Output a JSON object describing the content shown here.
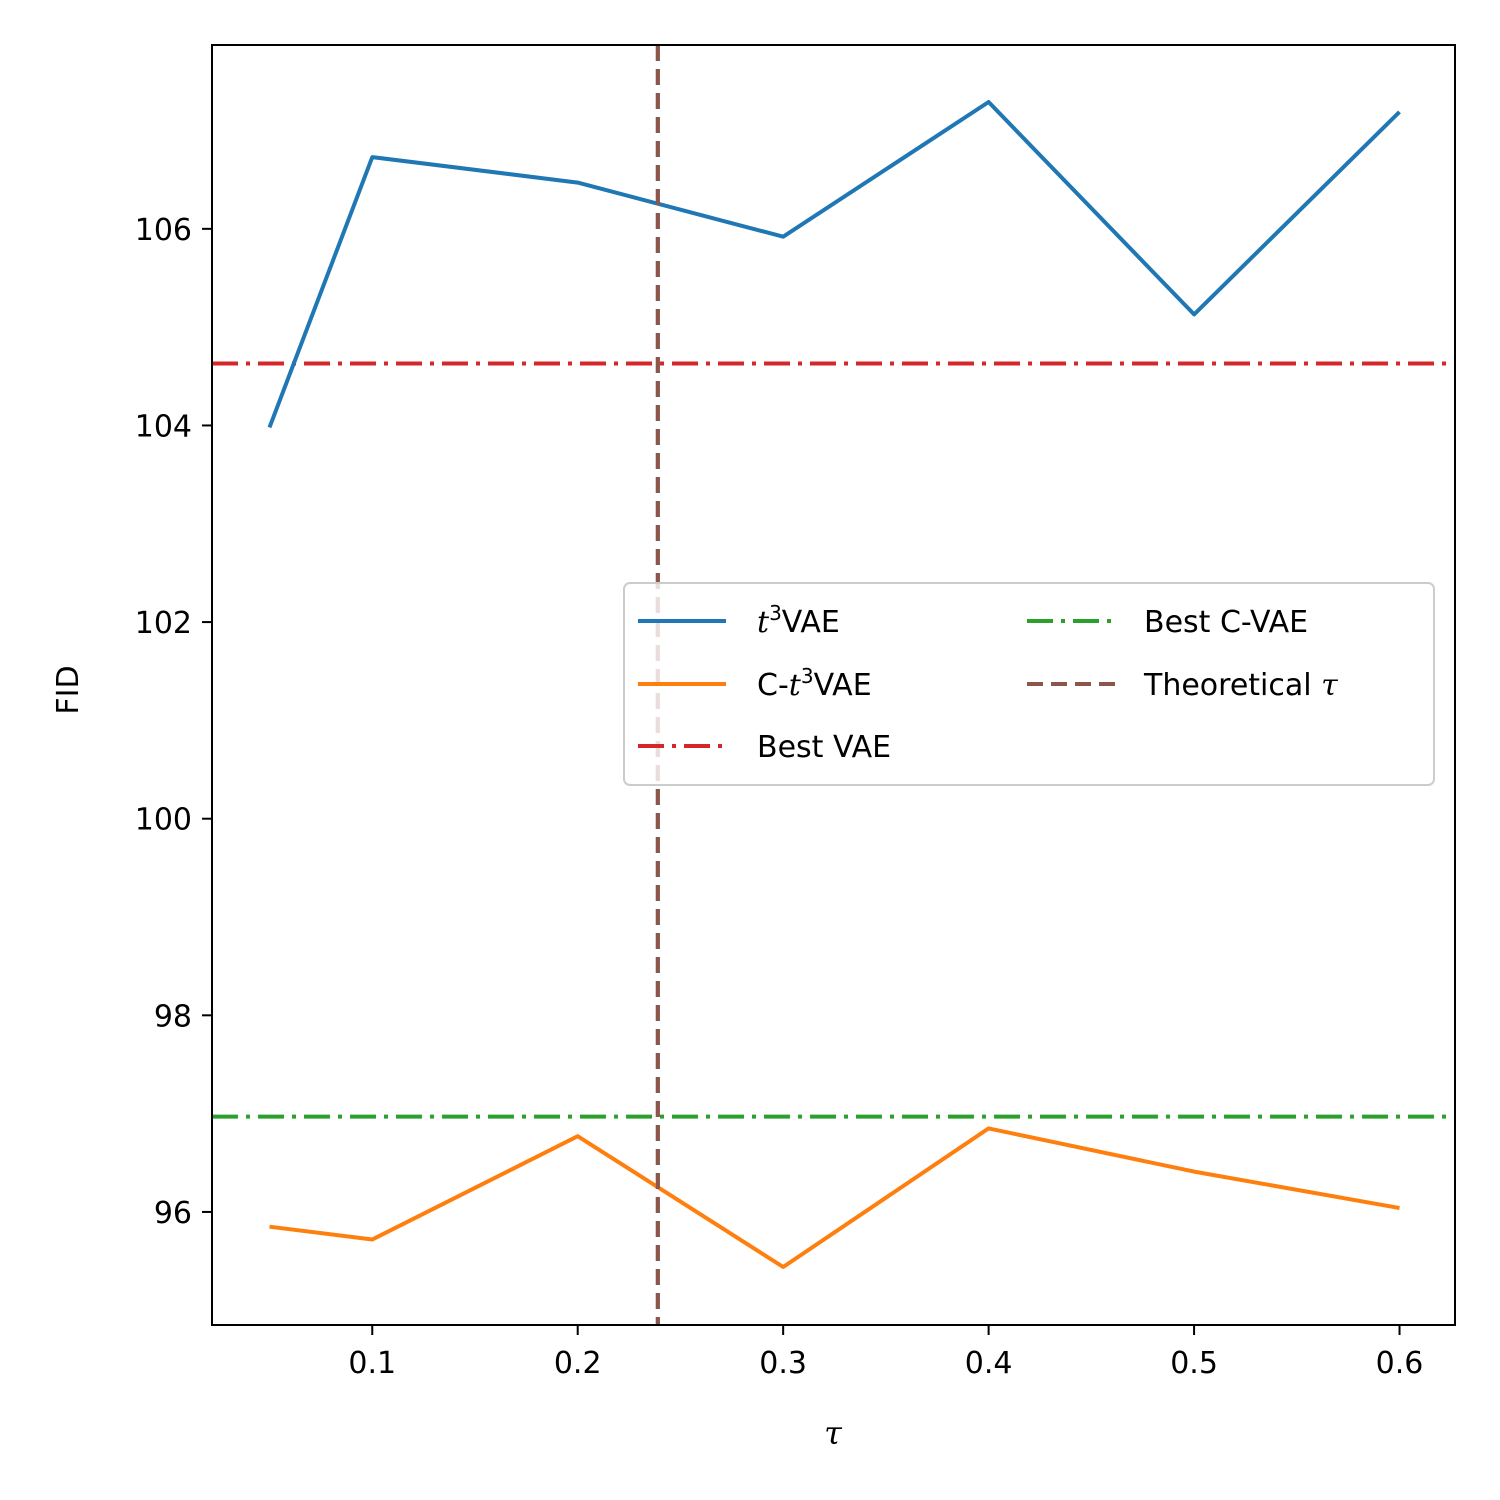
{
  "chart_data": {
    "type": "line",
    "title": "",
    "xlabel": "τ",
    "ylabel": "FID",
    "xlim": [
      0.022,
      0.627
    ],
    "ylim": [
      94.85,
      107.87
    ],
    "xticks": [
      0.1,
      0.2,
      0.3,
      0.4,
      0.5,
      0.6
    ],
    "xtick_labels": [
      "0.1",
      "0.2",
      "0.3",
      "0.4",
      "0.5",
      "0.6"
    ],
    "yticks": [
      96,
      98,
      100,
      102,
      104,
      106
    ],
    "ytick_labels": [
      "96",
      "98",
      "100",
      "102",
      "104",
      "106"
    ],
    "grid": false,
    "legend_position": "center-right",
    "x": [
      0.05,
      0.1,
      0.2,
      0.3,
      0.4,
      0.5,
      0.6
    ],
    "series": [
      {
        "name": "t³VAE",
        "legend_prefix": "",
        "legend_math": "t",
        "legend_sup": "3",
        "legend_suffix": "VAE",
        "color": "#1f77b4",
        "style": "solid",
        "values": [
          103.98,
          106.73,
          106.47,
          105.92,
          107.29,
          105.13,
          107.19
        ]
      },
      {
        "name": "C-t³VAE",
        "legend_prefix": "C-",
        "legend_math": "t",
        "legend_sup": "3",
        "legend_suffix": "VAE",
        "color": "#ff7f0e",
        "style": "solid",
        "values": [
          95.85,
          95.72,
          96.77,
          95.44,
          96.85,
          96.41,
          96.04
        ]
      }
    ],
    "reference_lines": [
      {
        "name": "Best VAE",
        "orientation": "horizontal",
        "value": 104.63,
        "color": "#d62728",
        "style": "dashdot"
      },
      {
        "name": "Best C-VAE",
        "orientation": "horizontal",
        "value": 96.97,
        "color": "#2ca02c",
        "style": "dashdot"
      },
      {
        "name": "Theoretical τ",
        "legend_text": "Theoretical ",
        "legend_math": "τ",
        "orientation": "vertical",
        "value": 0.239,
        "color": "#8c564b",
        "style": "dashed"
      }
    ]
  }
}
